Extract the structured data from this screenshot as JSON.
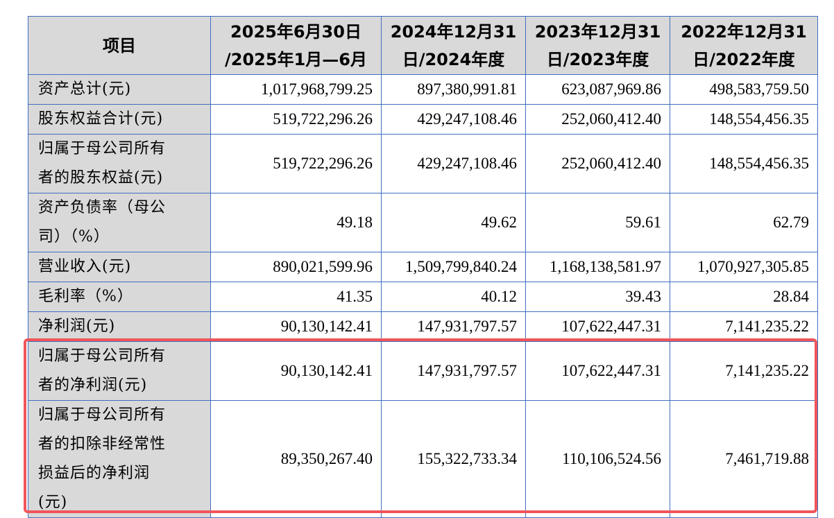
{
  "table": {
    "headers": [
      "项目",
      "2025年6月30日\n/2025年1月—6月",
      "2024年12月31\n日/2024年度",
      "2023年12月31\n日/2023年度",
      "2022年12月31\n日/2022年度"
    ],
    "rows": [
      {
        "label": "资产总计(元)",
        "values": [
          "1,017,968,799.25",
          "897,380,991.81",
          "623,087,969.86",
          "498,583,759.50"
        ]
      },
      {
        "label": "股东权益合计(元)",
        "values": [
          "519,722,296.26",
          "429,247,108.46",
          "252,060,412.40",
          "148,554,456.35"
        ]
      },
      {
        "label": "归属于母公司所有\n者的股东权益(元)",
        "values": [
          "519,722,296.26",
          "429,247,108.46",
          "252,060,412.40",
          "148,554,456.35"
        ]
      },
      {
        "label": "资产负债率（母公\n司）（%）",
        "values": [
          "49.18",
          "49.62",
          "59.61",
          "62.79"
        ]
      },
      {
        "label": "营业收入(元)",
        "values": [
          "890,021,599.96",
          "1,509,799,840.24",
          "1,168,138,581.97",
          "1,070,927,305.85"
        ]
      },
      {
        "label": "毛利率（%）",
        "values": [
          "41.35",
          "40.12",
          "39.43",
          "28.84"
        ]
      },
      {
        "label": "净利润(元)",
        "values": [
          "90,130,142.41",
          "147,931,797.57",
          "107,622,447.31",
          "7,141,235.22"
        ]
      },
      {
        "label": "归属于母公司所有\n者的净利润(元)",
        "values": [
          "90,130,142.41",
          "147,931,797.57",
          "107,622,447.31",
          "7,141,235.22"
        ]
      },
      {
        "label": "归属于母公司所有\n者的扣除非经常性\n损益后的净利润\n(元)",
        "values": [
          "89,350,267.40",
          "155,322,733.34",
          "110,106,524.56",
          "7,461,719.88"
        ]
      }
    ]
  },
  "highlight": {
    "color": "#f0555a"
  },
  "colors": {
    "border": "#3f6fbf",
    "label_bg": "#d9d9d9"
  }
}
